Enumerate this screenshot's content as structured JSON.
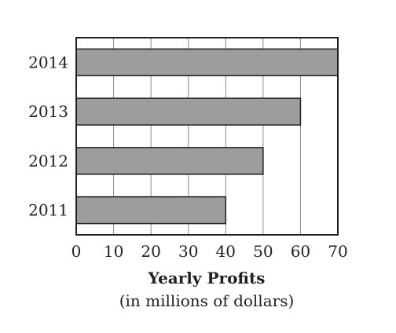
{
  "chart_data": {
    "type": "bar",
    "orientation": "horizontal",
    "categories": [
      "2014",
      "2013",
      "2012",
      "2011"
    ],
    "values": [
      70,
      60,
      50,
      40
    ],
    "title": "",
    "xlabel": "Yearly Profits",
    "xlabel_sub": "(in millions of dollars)",
    "ylabel": "",
    "xlim": [
      0,
      70
    ],
    "xticks": [
      0,
      10,
      20,
      30,
      40,
      50,
      60,
      70
    ],
    "grid": "vertical",
    "legend": "none",
    "colors": {
      "bar_fill": "#9d9d9d",
      "bar_stroke": "#231f20",
      "grid": "#8a8a8a",
      "frame": "#231f20",
      "text": "#231f20"
    }
  }
}
